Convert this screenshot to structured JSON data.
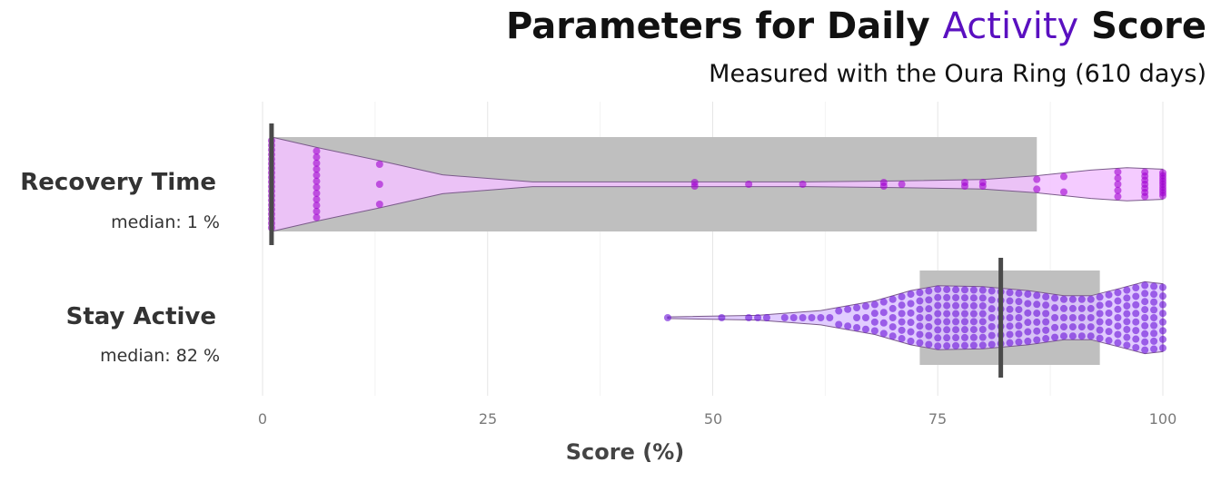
{
  "chart_data": {
    "type": "violin",
    "title_parts": [
      "Parameters for Daily ",
      "Activity",
      " Score"
    ],
    "subtitle": "Measured with the Oura Ring (610 days)",
    "xlabel": "Score (%)",
    "xlim": [
      0,
      100
    ],
    "x_ticks": [
      "0",
      "25",
      "50",
      "75",
      "100"
    ],
    "grid": "vertical",
    "colors": {
      "accent": "#5a10c0",
      "recovery_fill": "#f2c2ff",
      "recovery_point": "#a000d0",
      "stay_fill": "#dcc3ff",
      "stay_point": "#6a10d8",
      "box": "#bfbfbf",
      "median_line": "#4a4a4a"
    },
    "series": [
      {
        "name": "Recovery Time",
        "median_label": "median: 1 %",
        "median": 1,
        "q1": 1,
        "q3": 86,
        "points": [
          1,
          1,
          1,
          1,
          1,
          1,
          1,
          1,
          1,
          1,
          1,
          1,
          1,
          1,
          1,
          1,
          1,
          1,
          1,
          1,
          6,
          6,
          6,
          6,
          6,
          6,
          6,
          6,
          6,
          6,
          6,
          6,
          13,
          13,
          13,
          48,
          48,
          54,
          60,
          69,
          69,
          71,
          78,
          78,
          80,
          80,
          86,
          86,
          89,
          89,
          95,
          95,
          95,
          95,
          95,
          98,
          98,
          98,
          98,
          98,
          98,
          98,
          100,
          100,
          100,
          100,
          100,
          100,
          100,
          100,
          100
        ]
      },
      {
        "name": "Stay Active",
        "median_label": "median: 82 %",
        "median": 82,
        "q1": 73,
        "q3": 93,
        "points": [
          45,
          51,
          54,
          55,
          56,
          58,
          59,
          60,
          61,
          62,
          63,
          64,
          65,
          66,
          67,
          68,
          69,
          70,
          71,
          72,
          73,
          74,
          75,
          76,
          77,
          78,
          79,
          80,
          81,
          82,
          83,
          84,
          85,
          86,
          87,
          88,
          89,
          90,
          91,
          92,
          93,
          94,
          95,
          96,
          97,
          98,
          99,
          100
        ]
      }
    ]
  }
}
